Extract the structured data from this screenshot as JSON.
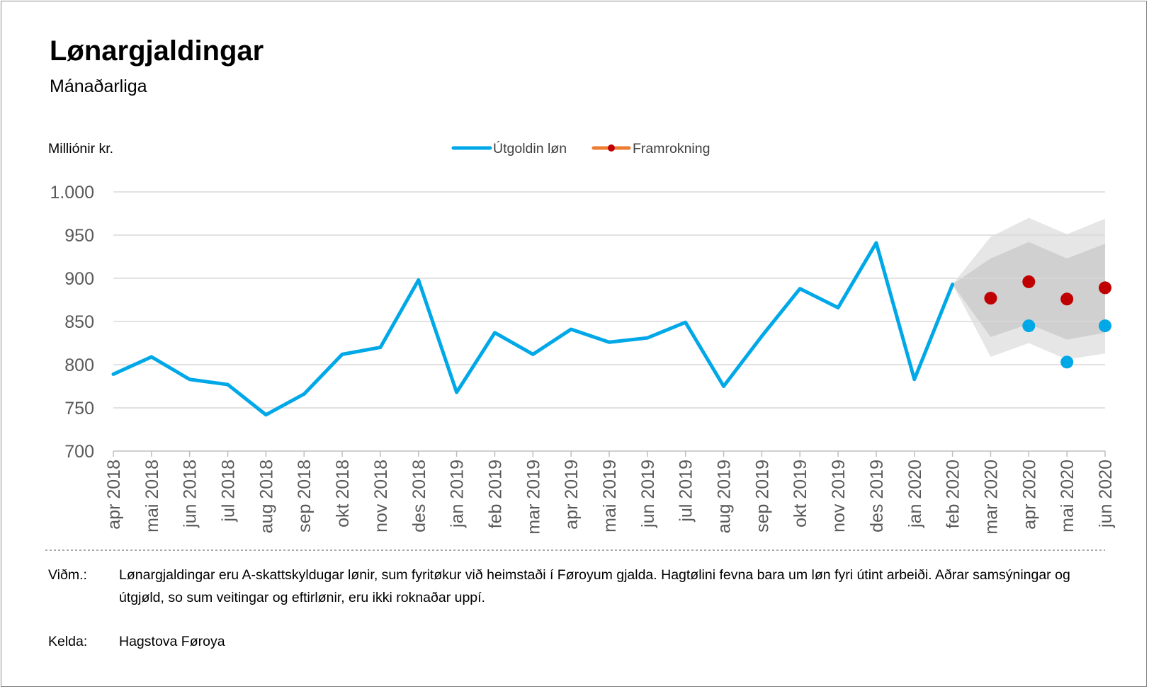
{
  "title": "Lønargjaldingar",
  "subtitle": "Mánaðarliga",
  "notes": {
    "label": "Viðm.:",
    "text": "Lønargjaldingar eru A-skattskyldugar lønir, sum fyritøkur við heimstaði í Føroyum gjalda. Hagtølini fevna bara um løn fyri útint arbeiði. Aðrar samsýningar og útgjøld, so sum veitingar og eftirlønir, eru ikki roknaðar uppí."
  },
  "source": {
    "label": "Kelda:",
    "text": "Hagstova Føroya"
  },
  "chart_data": {
    "type": "line",
    "ylabel": "Milliónir kr.",
    "ylim": [
      700,
      1000
    ],
    "yticks": [
      700,
      750,
      800,
      850,
      900,
      950,
      1000
    ],
    "ytick_labels": [
      "700",
      "750",
      "800",
      "850",
      "900",
      "950",
      "1.000"
    ],
    "grid": true,
    "legend_position": "top-center",
    "categories": [
      "apr 2018",
      "mai 2018",
      "jun 2018",
      "jul 2018",
      "aug 2018",
      "sep 2018",
      "okt 2018",
      "nov 2018",
      "des 2018",
      "jan 2019",
      "feb 2019",
      "mar 2019",
      "apr 2019",
      "mai 2019",
      "jun 2019",
      "jul 2019",
      "aug 2019",
      "sep 2019",
      "okt 2019",
      "nov 2019",
      "des 2019",
      "jan 2020",
      "feb 2020",
      "mar 2020",
      "apr 2020",
      "mai 2020",
      "jun 2020"
    ],
    "series": [
      {
        "name": "Útgoldin løn",
        "color": "#00a8e8",
        "values": [
          789,
          809,
          783,
          777,
          742,
          766,
          812,
          820,
          898,
          768,
          837,
          812,
          841,
          826,
          831,
          849,
          775,
          833,
          888,
          866,
          941,
          783,
          893,
          null,
          845,
          803,
          845
        ]
      },
      {
        "name": "Framrokning",
        "color": "#c00000",
        "legend_line_color": "#ed7d31",
        "values": [
          null,
          null,
          null,
          null,
          null,
          null,
          null,
          null,
          null,
          null,
          null,
          null,
          null,
          null,
          null,
          null,
          null,
          null,
          null,
          null,
          null,
          null,
          null,
          877,
          896,
          876,
          889
        ]
      }
    ],
    "bands": {
      "outer": {
        "color": "#e6e6e6",
        "upper": [
          893,
          948,
          970,
          951,
          969
        ],
        "lower": [
          893,
          809,
          825,
          806,
          813
        ]
      },
      "inner": {
        "color": "#d0d0d0",
        "upper": [
          893,
          923,
          942,
          923,
          940
        ],
        "lower": [
          893,
          832,
          847,
          829,
          837
        ]
      },
      "start_index": 22
    }
  }
}
